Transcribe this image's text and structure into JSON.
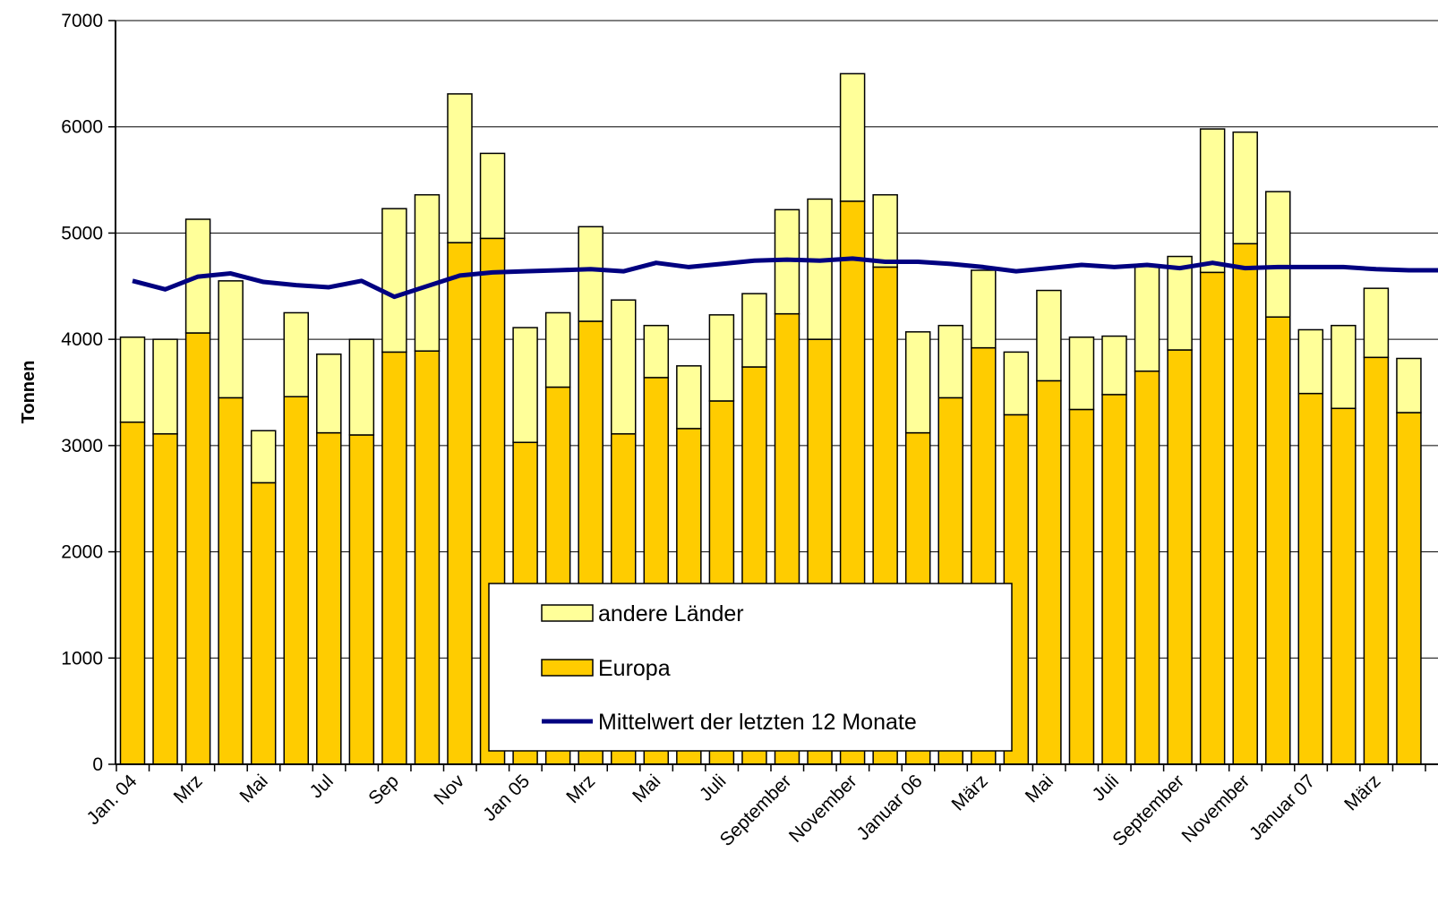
{
  "chart_data": {
    "type": "bar",
    "stacked": true,
    "ylabel": "Tonnen",
    "ylim": [
      0,
      7000
    ],
    "y_ticks": [
      0,
      1000,
      2000,
      3000,
      4000,
      5000,
      6000,
      7000
    ],
    "grid": true,
    "legend_position": "bottom-center",
    "x_tick_labels": [
      "Jan. 04",
      "Mrz",
      "Mai",
      "Jul",
      "Sep",
      "Nov",
      "Jan 05",
      "Mrz",
      "Mai",
      "Juli",
      "September",
      "November",
      "Januar 06",
      "März",
      "Mai",
      "Juli",
      "September",
      "November",
      "Januar 07",
      "März"
    ],
    "series": [
      {
        "name": "Europa",
        "kind": "bar",
        "color": "#FFCC00",
        "values": [
          3220,
          3110,
          4060,
          3450,
          2650,
          3460,
          3120,
          3100,
          3880,
          3890,
          4910,
          4950,
          3030,
          3550,
          4170,
          3110,
          3640,
          3160,
          3420,
          3740,
          4240,
          4000,
          5300,
          4680,
          3120,
          3450,
          3920,
          3290,
          3610,
          3340,
          3480,
          3700,
          3900,
          4630,
          4900,
          4210,
          3490,
          3350,
          3830,
          3310
        ]
      },
      {
        "name": "andere Länder",
        "kind": "bar",
        "color": "#FFFF99",
        "values": [
          800,
          890,
          1070,
          1100,
          490,
          790,
          740,
          900,
          1350,
          1470,
          1400,
          800,
          1080,
          700,
          890,
          1260,
          490,
          590,
          810,
          690,
          980,
          1320,
          1200,
          680,
          950,
          680,
          730,
          590,
          850,
          680,
          550,
          1000,
          880,
          1350,
          1050,
          1180,
          600,
          780,
          650,
          510
        ]
      },
      {
        "name": "Mittelwert der letzten 12 Monate",
        "kind": "line",
        "color": "#000080",
        "values": [
          4550,
          4470,
          4590,
          4620,
          4540,
          4510,
          4490,
          4550,
          4400,
          4500,
          4600,
          4630,
          4640,
          4650,
          4660,
          4640,
          4720,
          4680,
          4710,
          4740,
          4750,
          4740,
          4760,
          4730,
          4730,
          4710,
          4680,
          4640,
          4670,
          4700,
          4680,
          4700,
          4670,
          4720,
          4670,
          4680,
          4680,
          4680,
          4660,
          4650
        ]
      }
    ]
  }
}
